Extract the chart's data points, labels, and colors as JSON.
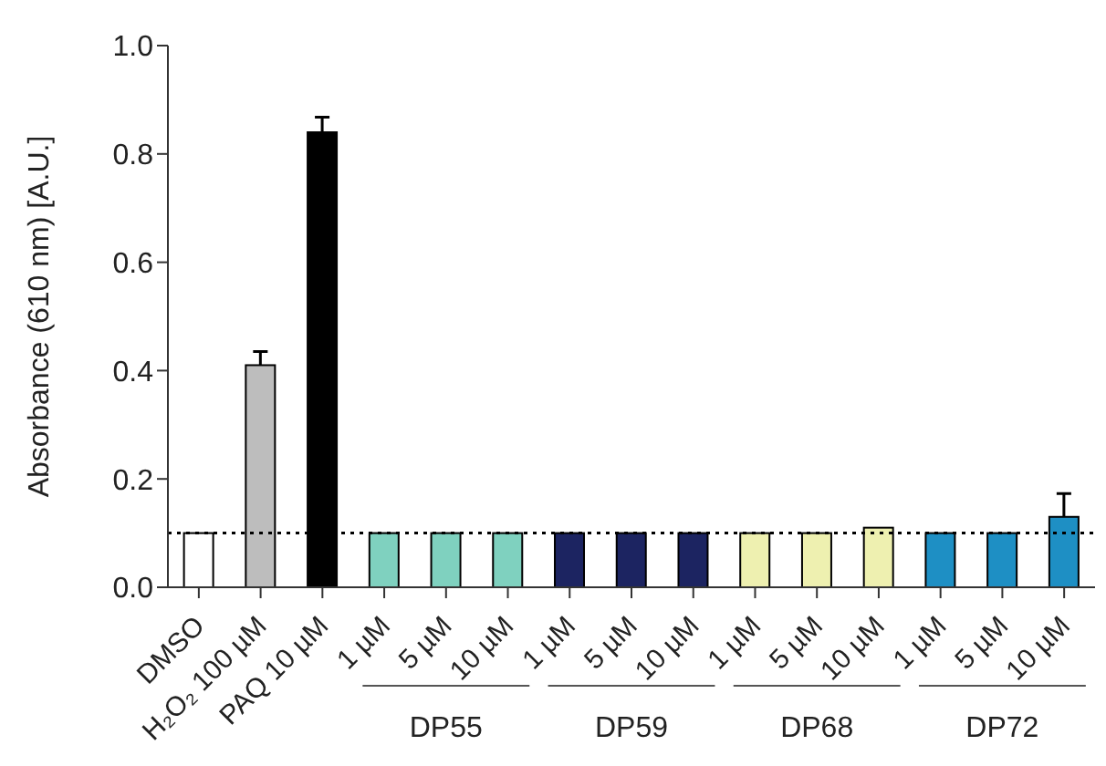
{
  "chart_data": {
    "type": "bar",
    "ylabel": "Absorbance (610 nm) [A.U.]",
    "categories": [
      "DMSO",
      "H₂O₂ 100 µM",
      "PAQ 10 µM",
      "1 µM",
      "5 µM",
      "10 µM",
      "1 µM",
      "5 µM",
      "10 µM",
      "1 µM",
      "5 µM",
      "10 µM",
      "1 µM",
      "5 µM",
      "10 µM"
    ],
    "values": [
      0.1,
      0.41,
      0.84,
      0.1,
      0.1,
      0.1,
      0.1,
      0.1,
      0.1,
      0.1,
      0.1,
      0.11,
      0.1,
      0.1,
      0.13
    ],
    "errors": [
      null,
      0.025,
      0.028,
      null,
      null,
      null,
      null,
      null,
      null,
      null,
      null,
      null,
      null,
      null,
      0.043
    ],
    "colors": [
      "#ffffff",
      "#bdbdbd",
      "#000000",
      "#7fd1bf",
      "#7fd1bf",
      "#7fd1bf",
      "#1c2461",
      "#1c2461",
      "#1c2461",
      "#eef0b0",
      "#eef0b0",
      "#eef0b0",
      "#1e8fc4",
      "#1e8fc4",
      "#1e8fc4"
    ],
    "ylim": [
      0,
      1
    ],
    "yticks": [
      {
        "value": 0,
        "label": "0.0"
      },
      {
        "value": 0.2,
        "label": "0.2"
      },
      {
        "value": 0.4,
        "label": "0.4"
      },
      {
        "value": 0.6,
        "label": "0.6"
      },
      {
        "value": 0.8,
        "label": "0.8"
      },
      {
        "value": 1,
        "label": "1.0"
      }
    ],
    "ref_lines": [
      {
        "axis": "y",
        "value": 0.1,
        "color": "#000000",
        "line_style": "dotted"
      }
    ],
    "annotations": [
      "DP55",
      "DP59",
      "DP68",
      "DP72"
    ],
    "grid": false,
    "legend": false
  }
}
